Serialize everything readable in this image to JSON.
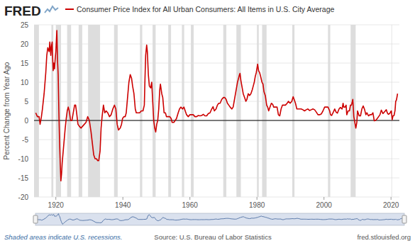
{
  "chart_data": {
    "type": "line",
    "logo": "FRED",
    "y_label": "Percent Change from Year Ago",
    "note": "Shaded areas indicate U.S. recessions.",
    "source": "Source: U.S. Bureau of Labor Statistics",
    "website": "fred.stlouisfed.org",
    "xlim": [
      1913.5,
      2022.5
    ],
    "xticks": [
      1920,
      1940,
      1960,
      1980,
      2000,
      2020
    ],
    "ylim": [
      -20,
      25
    ],
    "yticks": [
      -20,
      -15,
      -10,
      -5,
      0,
      5,
      10,
      15,
      20,
      25
    ],
    "grid": true,
    "legend": "top",
    "reference_line": 0,
    "recessions": [
      [
        1913.0,
        1914.95
      ],
      [
        1918.67,
        1919.25
      ],
      [
        1920.0,
        1921.55
      ],
      [
        1923.37,
        1924.55
      ],
      [
        1926.8,
        1927.87
      ],
      [
        1929.62,
        1933.2
      ],
      [
        1937.37,
        1938.45
      ],
      [
        1945.1,
        1945.78
      ],
      [
        1948.87,
        1949.78
      ],
      [
        1953.54,
        1954.37
      ],
      [
        1957.62,
        1958.29
      ],
      [
        1960.29,
        1961.12
      ],
      [
        1969.95,
        1970.87
      ],
      [
        1973.87,
        1975.2
      ],
      [
        1980.0,
        1980.54
      ],
      [
        1981.54,
        1982.87
      ],
      [
        1990.54,
        1991.2
      ],
      [
        2001.2,
        2001.87
      ],
      [
        2007.95,
        2009.45
      ],
      [
        2020.12,
        2020.29
      ]
    ],
    "x": [
      1914.0,
      1914.5,
      1915.0,
      1915.3,
      1915.7,
      1916.0,
      1916.5,
      1917.0,
      1917.3,
      1917.6,
      1918.0,
      1918.2,
      1918.5,
      1918.7,
      1918.9,
      1919.0,
      1919.2,
      1919.4,
      1919.6,
      1919.8,
      1920.0,
      1920.3,
      1920.5,
      1920.7,
      1920.9,
      1921.1,
      1921.3,
      1921.5,
      1921.7,
      1921.9,
      1922.2,
      1922.5,
      1922.8,
      1923.1,
      1923.4,
      1923.7,
      1924.0,
      1924.4,
      1924.8,
      1925.2,
      1925.6,
      1925.9,
      1926.2,
      1926.6,
      1927.0,
      1927.5,
      1928.0,
      1928.5,
      1929.0,
      1929.5,
      1930.0,
      1930.5,
      1930.9,
      1931.3,
      1931.7,
      1932.1,
      1932.5,
      1932.8,
      1933.2,
      1933.5,
      1933.8,
      1934.2,
      1934.6,
      1935.0,
      1935.5,
      1936.0,
      1936.5,
      1937.0,
      1937.5,
      1937.9,
      1938.3,
      1938.7,
      1939.2,
      1939.6,
      1939.9,
      1940.3,
      1940.7,
      1941.0,
      1941.4,
      1941.8,
      1942.2,
      1942.6,
      1942.9,
      1943.3,
      1943.7,
      1944.0,
      1944.5,
      1945.0,
      1945.5,
      1946.0,
      1946.4,
      1946.6,
      1946.8,
      1947.1,
      1947.3,
      1947.6,
      1947.9,
      1948.3,
      1948.6,
      1948.9,
      1949.2,
      1949.5,
      1949.8,
      1950.1,
      1950.4,
      1950.7,
      1951.0,
      1951.2,
      1951.6,
      1951.9,
      1952.3,
      1952.7,
      1953.0,
      1953.5,
      1954.0,
      1954.4,
      1954.7,
      1955.2,
      1955.6,
      1956.0,
      1956.5,
      1956.9,
      1957.3,
      1957.8,
      1958.2,
      1958.6,
      1959.0,
      1959.5,
      1960.0,
      1960.6,
      1961.0,
      1961.5,
      1962.0,
      1962.5,
      1963.0,
      1963.5,
      1964.0,
      1964.5,
      1965.0,
      1965.5,
      1966.0,
      1966.5,
      1966.9,
      1967.3,
      1967.8,
      1968.2,
      1968.6,
      1969.0,
      1969.5,
      1970.0,
      1970.4,
      1970.8,
      1971.2,
      1971.6,
      1972.0,
      1972.5,
      1972.9,
      1973.2,
      1973.6,
      1973.9,
      1974.2,
      1974.5,
      1974.8,
      1974.95,
      1975.2,
      1975.5,
      1975.9,
      1976.3,
      1976.7,
      1977.0,
      1977.4,
      1977.8,
      1978.2,
      1978.6,
      1978.9,
      1979.2,
      1979.5,
      1979.8,
      1980.2,
      1980.5,
      1980.8,
      1981.1,
      1981.5,
      1981.8,
      1982.1,
      1982.5,
      1982.9,
      1983.2,
      1983.5,
      1983.9,
      1984.3,
      1984.7,
      1985.0,
      1985.5,
      1986.0,
      1986.4,
      1986.8,
      1987.2,
      1987.6,
      1988.0,
      1988.5,
      1989.0,
      1989.4,
      1989.9,
      1990.4,
      1990.8,
      1991.1,
      1991.5,
      1991.9,
      1992.3,
      1992.8,
      1993.2,
      1993.7,
      1994.2,
      1994.7,
      1995.2,
      1995.7,
      1996.2,
      1996.7,
      1997.2,
      1997.7,
      1998.2,
      1998.7,
      1999.2,
      1999.7,
      2000.2,
      2000.7,
      2001.2,
      2001.7,
      2001.95,
      2002.3,
      2002.8,
      2003.2,
      2003.6,
      2004.0,
      2004.5,
      2004.9,
      2005.4,
      2005.7,
      2005.9,
      2006.3,
      2006.6,
      2006.8,
      2007.2,
      2007.6,
      2007.9,
      2008.2,
      2008.6,
      2008.9,
      2009.2,
      2009.5,
      2009.8,
      2010.0,
      2010.5,
      2010.9,
      2011.3,
      2011.7,
      2012.1,
      2012.5,
      2012.8,
      2013.3,
      2013.7,
      2014.2,
      2014.6,
      2015.0,
      2015.5,
      2015.9,
      2016.3,
      2016.7,
      2017.1,
      2017.6,
      2017.9,
      2018.3,
      2018.6,
      2018.9,
      2019.2,
      2019.6,
      2019.9,
      2020.1,
      2020.35,
      2020.6,
      2020.9,
      2021.2,
      2021.4,
      2021.6,
      2021.8,
      2021.95
    ],
    "series": [
      {
        "name": "Consumer Price Index for All Urban Consumers: All Items in U.S. City Average",
        "color": "#cc0000",
        "values": [
          2.0,
          1.0,
          1.0,
          -1.0,
          1.0,
          3.0,
          7.0,
          12.5,
          17,
          19,
          18,
          20.5,
          17,
          19.5,
          20.5,
          17.5,
          13,
          15,
          13.5,
          16,
          18,
          23.5,
          15.6,
          12,
          2.5,
          -5,
          -11,
          -15.8,
          -14,
          -11,
          -8,
          -5,
          -2,
          0.5,
          2.5,
          3.5,
          2.5,
          0,
          0,
          2,
          4,
          4,
          2,
          -1,
          -1.5,
          -2,
          -1.5,
          -1,
          -0.5,
          1,
          0,
          -3,
          -6,
          -9,
          -10,
          -10,
          -10.5,
          -10.5,
          -8,
          -2,
          1,
          4,
          2,
          2.5,
          2,
          1,
          1.5,
          3,
          4,
          3,
          -1,
          -2.5,
          -2,
          -1,
          0.5,
          1,
          1,
          2,
          6,
          10,
          12,
          11,
          9,
          7,
          3,
          2,
          2,
          2,
          2.5,
          2.5,
          4,
          11,
          17,
          19.7,
          18,
          12,
          9,
          8.5,
          10,
          5,
          0,
          -2,
          -3,
          -1,
          0,
          3,
          8,
          9.5,
          7,
          6,
          2,
          2,
          1,
          1,
          1,
          0.5,
          -0.5,
          -0.5,
          0,
          0.5,
          2,
          3,
          3.5,
          3,
          3.5,
          2.5,
          1.5,
          1,
          1.5,
          1.5,
          1.5,
          1,
          1,
          1.3,
          1.2,
          1.3,
          1.6,
          1.2,
          1.2,
          1.8,
          2,
          3,
          3.6,
          2.5,
          3,
          4,
          4.5,
          4.5,
          5.5,
          6,
          6,
          5.5,
          4.5,
          4,
          3.5,
          3,
          3.5,
          5,
          7,
          8.5,
          10,
          11,
          12,
          12.3,
          10.5,
          9,
          7,
          6,
          5,
          5.5,
          7,
          6.5,
          7,
          8,
          9,
          10,
          11.5,
          12.5,
          14.7,
          13,
          12.5,
          11.5,
          10,
          9.5,
          7.5,
          6.5,
          4,
          3.5,
          2.5,
          3.5,
          4.5,
          4.2,
          3.5,
          3.5,
          3.5,
          1.5,
          1.2,
          3,
          4,
          4,
          4,
          4.5,
          5,
          4.5,
          5,
          6.2,
          5.5,
          4.5,
          3,
          3,
          3,
          3,
          2.8,
          2.5,
          2.8,
          3,
          2.6,
          2.8,
          3,
          2.8,
          2.2,
          1.5,
          1.5,
          1.7,
          2.5,
          3.5,
          3.5,
          3.5,
          2.5,
          1.5,
          1.3,
          2.2,
          3,
          2.2,
          1.9,
          3,
          3.4,
          3,
          4.5,
          3.5,
          3.5,
          4,
          1.5,
          2.5,
          2.5,
          4,
          4,
          5.5,
          1,
          -0.5,
          -2,
          -0.5,
          2.5,
          1.2,
          1.2,
          3,
          3.8,
          2.9,
          1.5,
          2,
          1.2,
          1.5,
          1.5,
          2,
          -0.1,
          0.1,
          0.5,
          1,
          1.5,
          2.7,
          1.8,
          2.1,
          2.5,
          2.8,
          2,
          1.6,
          1.8,
          2.3,
          2.5,
          0.2,
          1.2,
          1.3,
          2.6,
          5,
          5.3,
          6.2,
          7
        ]
      }
    ]
  }
}
